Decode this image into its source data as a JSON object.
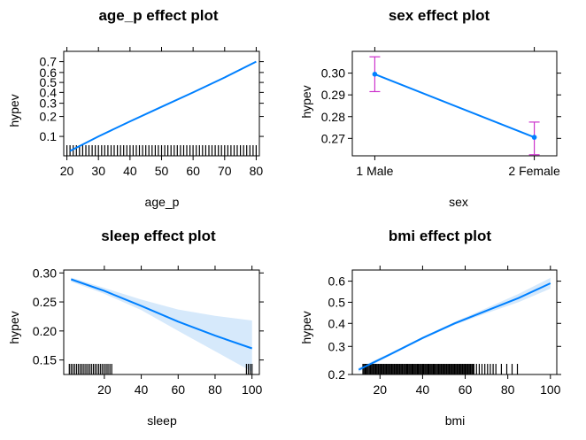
{
  "chart_data": [
    {
      "type": "line",
      "title": "age_p effect plot",
      "xlabel": "age_p",
      "ylabel": "hypev",
      "xlim": [
        19,
        81
      ],
      "ylim": [
        0.048,
        0.78
      ],
      "y_scale": "logit",
      "x_ticks": [
        20,
        30,
        40,
        50,
        60,
        70,
        80
      ],
      "y_ticks": [
        0.1,
        0.2,
        0.3,
        0.4,
        0.5,
        0.6,
        0.7
      ],
      "y_tick_labels": [
        "0.1",
        "0.2",
        "0.3",
        "0.4",
        "0.5",
        "0.6",
        "0.7"
      ],
      "x": [
        21,
        30,
        40,
        50,
        60,
        70,
        80
      ],
      "y": [
        0.058,
        0.1,
        0.17,
        0.27,
        0.4,
        0.55,
        0.7
      ],
      "band": false,
      "rug": {
        "from": 18,
        "to": 85,
        "step": 1
      },
      "line_color": "#0080ff"
    },
    {
      "type": "line",
      "title": "sex effect plot",
      "xlabel": "sex",
      "ylabel": "hypev",
      "x_categorical": true,
      "categories": [
        "1 Male",
        "2 Female"
      ],
      "ylim": [
        0.262,
        0.31
      ],
      "y_ticks": [
        0.27,
        0.28,
        0.29,
        0.3
      ],
      "y_tick_labels": [
        "0.27",
        "0.28",
        "0.29",
        "0.30"
      ],
      "y": [
        0.2995,
        0.2705
      ],
      "lower": [
        0.2915,
        0.2625
      ],
      "upper": [
        0.3075,
        0.2775
      ],
      "line_color": "#0080ff",
      "errorbar_color": "#cc33cc"
    },
    {
      "type": "line",
      "title": "sleep effect plot",
      "xlabel": "sleep",
      "ylabel": "hypev",
      "xlim": [
        -2,
        104
      ],
      "ylim": [
        0.125,
        0.305
      ],
      "x_ticks": [
        20,
        40,
        60,
        80,
        100
      ],
      "y_ticks": [
        0.15,
        0.2,
        0.25,
        0.3
      ],
      "y_tick_labels": [
        "0.15",
        "0.20",
        "0.25",
        "0.30"
      ],
      "x": [
        2,
        20,
        40,
        60,
        80,
        100
      ],
      "y": [
        0.289,
        0.269,
        0.243,
        0.216,
        0.192,
        0.17
      ],
      "band_lower": [
        0.285,
        0.264,
        0.236,
        0.2,
        0.165,
        0.13
      ],
      "band_upper": [
        0.292,
        0.274,
        0.254,
        0.237,
        0.226,
        0.218
      ],
      "band": true,
      "rug": {
        "groups": [
          {
            "from": 1,
            "to": 24,
            "step": 1
          },
          {
            "from": 97,
            "to": 100,
            "step": 1
          }
        ]
      },
      "line_color": "#0080ff"
    },
    {
      "type": "line",
      "title": "bmi effect plot",
      "xlabel": "bmi",
      "ylabel": "hypev",
      "xlim": [
        7,
        103
      ],
      "ylim": [
        0.2,
        0.65
      ],
      "y_scale": "logit",
      "x_ticks": [
        20,
        40,
        60,
        80,
        100
      ],
      "y_ticks": [
        0.2,
        0.3,
        0.4,
        0.5,
        0.6
      ],
      "y_tick_labels": [
        "0.2",
        "0.3",
        "0.4",
        "0.5",
        "0.6"
      ],
      "x": [
        10,
        25,
        40,
        55,
        70,
        85,
        100
      ],
      "y": [
        0.215,
        0.27,
        0.335,
        0.4,
        0.46,
        0.52,
        0.59
      ],
      "band_lower": [
        0.208,
        0.265,
        0.33,
        0.393,
        0.448,
        0.5,
        0.565
      ],
      "band_upper": [
        0.222,
        0.275,
        0.34,
        0.407,
        0.472,
        0.54,
        0.615
      ],
      "band": true,
      "rug": {
        "groups": [
          {
            "from": 12,
            "to": 64,
            "step": 0.5
          },
          {
            "from": 64,
            "to": 75,
            "step": 1.3
          },
          {
            "from": 77,
            "to": 85,
            "step": 2.5
          }
        ]
      },
      "line_color": "#0080ff"
    }
  ]
}
